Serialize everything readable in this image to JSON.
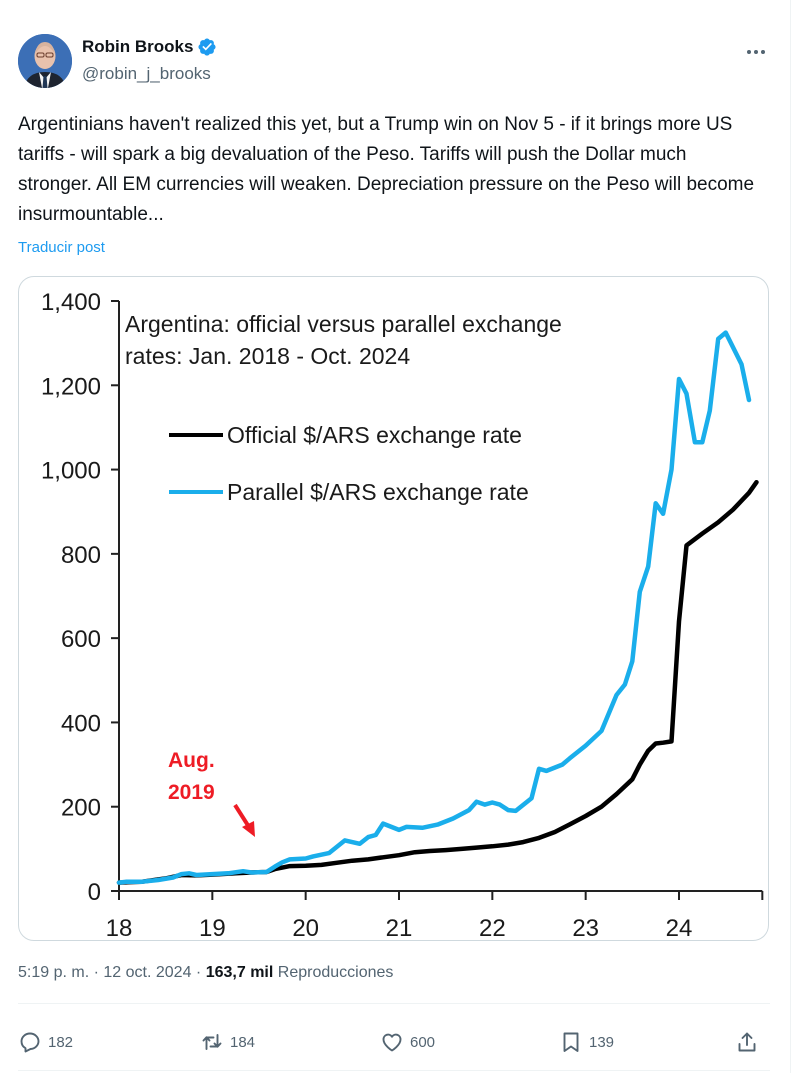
{
  "author": {
    "display_name": "Robin Brooks",
    "handle": "@robin_j_brooks",
    "verified": true,
    "verified_color": "#1d9bf0",
    "avatar_icon": "profile-photo"
  },
  "more_icon": "more-horizontal-icon",
  "tweet": {
    "text": "Argentinians haven't realized this yet, but a Trump win on Nov 5 - if it brings more US tariffs - will spark a big devaluation of the Peso. Tariffs will push the Dollar much stronger. All EM currencies will weaken. Depreciation pressure on the Peso will become insurmountable...",
    "translate_label": "Traducir post"
  },
  "meta": {
    "time": "5:19 p. m.",
    "separator": "·",
    "date": "12 oct. 2024",
    "views_count": "163,7 mil",
    "views_label": "Reproducciones"
  },
  "actions": [
    {
      "name": "reply",
      "icon": "reply-icon",
      "count": "182"
    },
    {
      "name": "repost",
      "icon": "repost-icon",
      "count": "184"
    },
    {
      "name": "like",
      "icon": "heart-icon",
      "count": "600"
    },
    {
      "name": "bookmark",
      "icon": "bookmark-icon",
      "count": "139"
    },
    {
      "name": "share",
      "icon": "share-icon",
      "count": ""
    }
  ],
  "colors": {
    "accent": "#1d9bf0",
    "text_secondary": "#536471",
    "official_line": "#000000",
    "parallel_line": "#1aaeeb",
    "annotation": "#ee1c25"
  },
  "chart_data": {
    "type": "line",
    "title": "Argentina: official versus parallel exchange rates: Jan. 2018 - Oct. 2024",
    "title_lines": [
      "Argentina: official versus parallel exchange",
      "rates: Jan. 2018 - Oct. 2024"
    ],
    "xlabel": "",
    "ylabel": "",
    "xlim": [
      18,
      24.85
    ],
    "ylim": [
      0,
      1400
    ],
    "x_ticks": [
      18,
      19,
      20,
      21,
      22,
      23,
      24
    ],
    "x_tick_labels": [
      "18",
      "19",
      "20",
      "21",
      "22",
      "23",
      "24"
    ],
    "y_ticks": [
      0,
      200,
      400,
      600,
      800,
      1000,
      1200,
      1400
    ],
    "y_tick_labels": [
      "0",
      "200",
      "400",
      "600",
      "800",
      "1,000",
      "1,200",
      "1,400"
    ],
    "grid": false,
    "legend_position": "top-left",
    "annotation": {
      "text_lines": [
        "Aug.",
        "2019"
      ],
      "points_to_x": 19.58,
      "points_to_y": 45
    },
    "series": [
      {
        "name": "Official $/ARS exchange rate",
        "legend_label": "Official $/ARS exchange rate",
        "points": [
          [
            18.0,
            20
          ],
          [
            18.25,
            22
          ],
          [
            18.5,
            30
          ],
          [
            18.67,
            38
          ],
          [
            18.83,
            37
          ],
          [
            19.0,
            39
          ],
          [
            19.25,
            42
          ],
          [
            19.42,
            44
          ],
          [
            19.58,
            45
          ],
          [
            19.67,
            52
          ],
          [
            19.83,
            59
          ],
          [
            20.0,
            60
          ],
          [
            20.17,
            62
          ],
          [
            20.33,
            67
          ],
          [
            20.5,
            72
          ],
          [
            20.67,
            75
          ],
          [
            20.83,
            80
          ],
          [
            21.0,
            85
          ],
          [
            21.17,
            92
          ],
          [
            21.33,
            95
          ],
          [
            21.5,
            97
          ],
          [
            21.67,
            100
          ],
          [
            21.83,
            103
          ],
          [
            22.0,
            106
          ],
          [
            22.17,
            110
          ],
          [
            22.33,
            116
          ],
          [
            22.5,
            126
          ],
          [
            22.67,
            140
          ],
          [
            22.83,
            158
          ],
          [
            23.0,
            178
          ],
          [
            23.17,
            200
          ],
          [
            23.33,
            230
          ],
          [
            23.5,
            265
          ],
          [
            23.58,
            300
          ],
          [
            23.67,
            333
          ],
          [
            23.75,
            350
          ],
          [
            23.83,
            352
          ],
          [
            23.92,
            355
          ],
          [
            24.0,
            640
          ],
          [
            24.08,
            820
          ],
          [
            24.25,
            848
          ],
          [
            24.42,
            875
          ],
          [
            24.58,
            905
          ],
          [
            24.75,
            945
          ],
          [
            24.83,
            970
          ]
        ]
      },
      {
        "name": "Parallel $/ARS exchange rate",
        "legend_label": "Parallel $/ARS exchange rate",
        "points": [
          [
            18.0,
            20
          ],
          [
            18.08,
            22
          ],
          [
            18.25,
            22
          ],
          [
            18.42,
            26
          ],
          [
            18.58,
            32
          ],
          [
            18.67,
            40
          ],
          [
            18.75,
            42
          ],
          [
            18.83,
            38
          ],
          [
            19.0,
            40
          ],
          [
            19.17,
            42
          ],
          [
            19.33,
            47
          ],
          [
            19.42,
            44
          ],
          [
            19.58,
            45
          ],
          [
            19.67,
            58
          ],
          [
            19.75,
            68
          ],
          [
            19.83,
            75
          ],
          [
            20.0,
            77
          ],
          [
            20.08,
            82
          ],
          [
            20.25,
            90
          ],
          [
            20.42,
            120
          ],
          [
            20.58,
            112
          ],
          [
            20.67,
            128
          ],
          [
            20.75,
            133
          ],
          [
            20.83,
            160
          ],
          [
            21.0,
            145
          ],
          [
            21.08,
            152
          ],
          [
            21.25,
            150
          ],
          [
            21.42,
            158
          ],
          [
            21.58,
            172
          ],
          [
            21.75,
            192
          ],
          [
            21.83,
            212
          ],
          [
            21.92,
            205
          ],
          [
            22.0,
            210
          ],
          [
            22.08,
            205
          ],
          [
            22.17,
            192
          ],
          [
            22.25,
            190
          ],
          [
            22.42,
            220
          ],
          [
            22.5,
            290
          ],
          [
            22.58,
            285
          ],
          [
            22.75,
            300
          ],
          [
            22.83,
            315
          ],
          [
            23.0,
            345
          ],
          [
            23.17,
            380
          ],
          [
            23.33,
            465
          ],
          [
            23.42,
            490
          ],
          [
            23.5,
            545
          ],
          [
            23.58,
            710
          ],
          [
            23.67,
            770
          ],
          [
            23.75,
            920
          ],
          [
            23.83,
            895
          ],
          [
            23.92,
            1000
          ],
          [
            24.0,
            1215
          ],
          [
            24.08,
            1180
          ],
          [
            24.17,
            1065
          ],
          [
            24.25,
            1065
          ],
          [
            24.33,
            1140
          ],
          [
            24.42,
            1310
          ],
          [
            24.5,
            1325
          ],
          [
            24.67,
            1250
          ],
          [
            24.75,
            1165
          ]
        ]
      }
    ]
  }
}
